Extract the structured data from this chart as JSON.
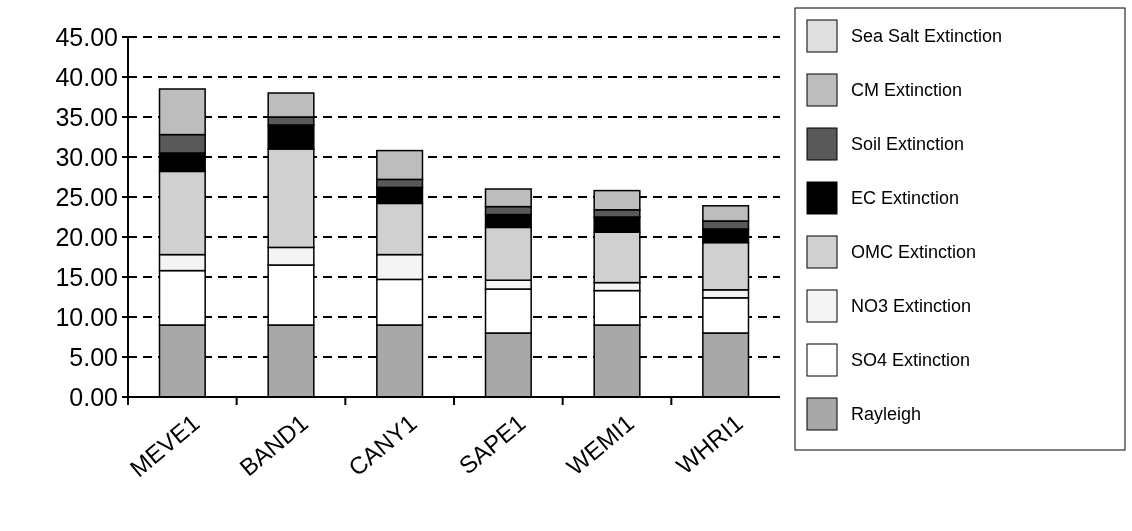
{
  "chart_data": {
    "type": "bar",
    "stacked": true,
    "categories": [
      "MEVE1",
      "BAND1",
      "CANY1",
      "SAPE1",
      "WEMI1",
      "WHRI1"
    ],
    "series": [
      {
        "name": "Rayleigh",
        "color": "#a8a8a8",
        "values": [
          9,
          9,
          9,
          8,
          9,
          8
        ]
      },
      {
        "name": "SO4 Extinction",
        "color": "#ffffff",
        "values": [
          6.8,
          7.5,
          5.7,
          5.5,
          4.3,
          4.4
        ]
      },
      {
        "name": "NO3 Extinction",
        "color": "#f4f4f4",
        "values": [
          2,
          2.2,
          3.1,
          1.1,
          1,
          1
        ]
      },
      {
        "name": "OMC Extinction",
        "color": "#d0d0d0",
        "values": [
          10.4,
          12.3,
          6.4,
          6.6,
          6.3,
          5.9
        ]
      },
      {
        "name": "EC Extinction",
        "color": "#000000",
        "values": [
          2.3,
          3,
          2,
          1.6,
          1.9,
          1.7
        ]
      },
      {
        "name": "Soil Extinction",
        "color": "#595959",
        "values": [
          2.3,
          1,
          1,
          1,
          0.9,
          1
        ]
      },
      {
        "name": "CM Extinction",
        "color": "#bdbdbd",
        "values": [
          5.7,
          3,
          3.6,
          2.2,
          2.4,
          1.9
        ]
      },
      {
        "name": "Sea Salt Extinction",
        "color": "#e0e0e0",
        "values": [
          0,
          0,
          0,
          0,
          0,
          0
        ]
      }
    ],
    "ylim": [
      0,
      45
    ],
    "yticks": [
      {
        "value": 0,
        "label": "0.00"
      },
      {
        "value": 5,
        "label": "5.00"
      },
      {
        "value": 10,
        "label": "10.00"
      },
      {
        "value": 15,
        "label": "15.00"
      },
      {
        "value": 20,
        "label": "20.00"
      },
      {
        "value": 25,
        "label": "25.00"
      },
      {
        "value": 30,
        "label": "30.00"
      },
      {
        "value": 35,
        "label": "35.00"
      },
      {
        "value": 40,
        "label": "40.00"
      },
      {
        "value": 45,
        "label": "45.00"
      }
    ],
    "grid": "y",
    "line_style": "dashed",
    "legend": "right"
  }
}
